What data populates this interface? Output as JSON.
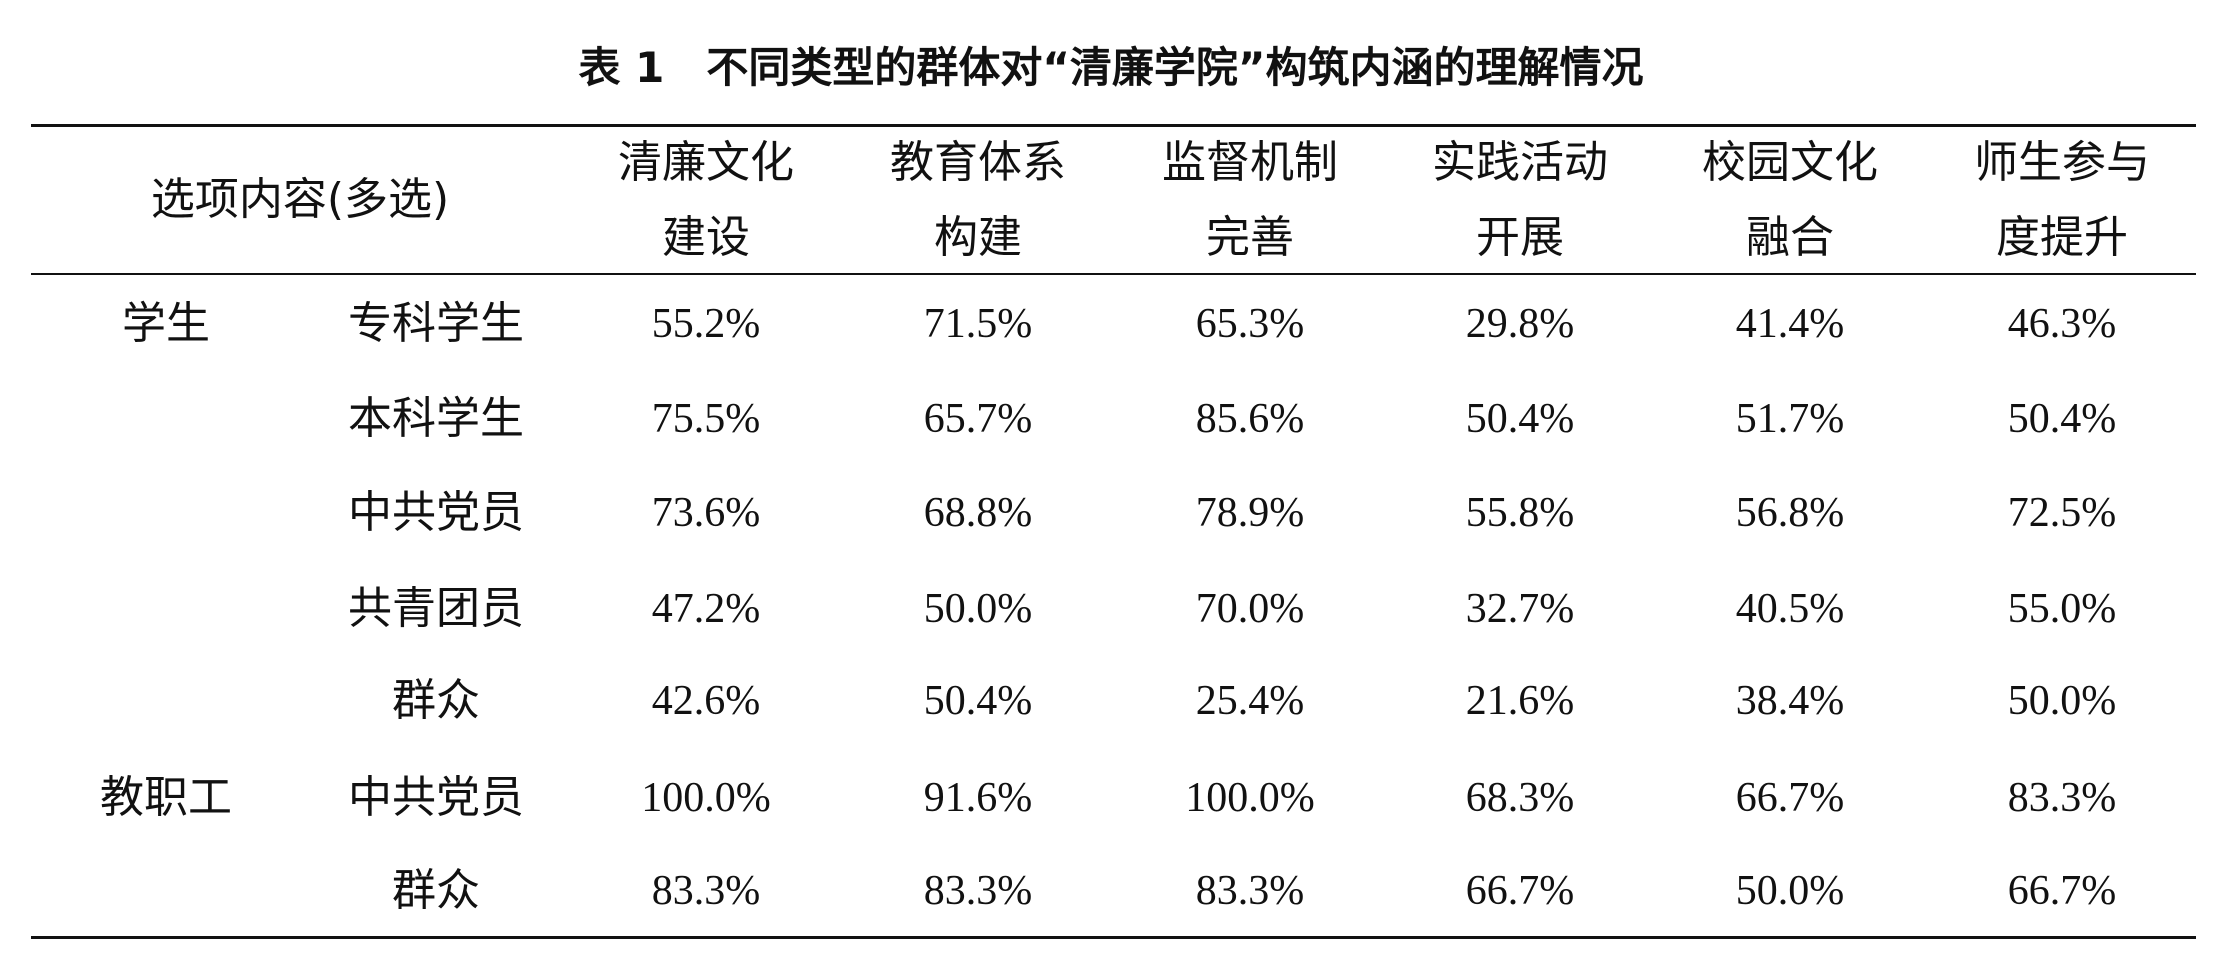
{
  "title": "表 1　不同类型的群体对“清廉学院”构筑内涵的理解情况",
  "table": {
    "corner": "选项内容(多选)",
    "columns": [
      [
        "清廉文化",
        "建设"
      ],
      [
        "教育体系",
        "构建"
      ],
      [
        "监督机制",
        "完善"
      ],
      [
        "实践活动",
        "开展"
      ],
      [
        "校园文化",
        "融合"
      ],
      [
        "师生参与",
        "度提升"
      ]
    ],
    "groups": [
      {
        "label": "学生",
        "rows": [
          {
            "label": "专科学生",
            "cells": [
              "55.2%",
              "71.5%",
              "65.3%",
              "29.8%",
              "41.4%",
              "46.3%"
            ]
          },
          {
            "label": "本科学生",
            "cells": [
              "75.5%",
              "65.7%",
              "85.6%",
              "50.4%",
              "51.7%",
              "50.4%"
            ]
          },
          {
            "label": "中共党员",
            "cells": [
              "73.6%",
              "68.8%",
              "78.9%",
              "55.8%",
              "56.8%",
              "72.5%"
            ]
          },
          {
            "label": "共青团员",
            "cells": [
              "47.2%",
              "50.0%",
              "70.0%",
              "32.7%",
              "40.5%",
              "55.0%"
            ]
          },
          {
            "label": "群众",
            "cells": [
              "42.6%",
              "50.4%",
              "25.4%",
              "21.6%",
              "38.4%",
              "50.0%"
            ]
          }
        ]
      },
      {
        "label": "教职工",
        "rows": [
          {
            "label": "中共党员",
            "cells": [
              "100.0%",
              "91.6%",
              "100.0%",
              "68.3%",
              "66.7%",
              "83.3%"
            ]
          },
          {
            "label": "群众",
            "cells": [
              "83.3%",
              "83.3%",
              "83.3%",
              "66.7%",
              "50.0%",
              "66.7%"
            ]
          }
        ]
      }
    ]
  }
}
